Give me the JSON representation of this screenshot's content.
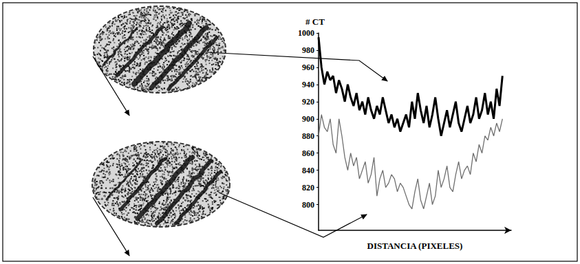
{
  "chart_data": {
    "type": "line",
    "y_label": "# CT",
    "x_label": "DISTANCIA (PIXELES)",
    "x": [
      0,
      1,
      2,
      3,
      4,
      5,
      6,
      7,
      8,
      9,
      10,
      11,
      12,
      13,
      14,
      15,
      16,
      17,
      18,
      19,
      20,
      21,
      22,
      23,
      24,
      25,
      26,
      27,
      28,
      29,
      30,
      31,
      32,
      33,
      34,
      35,
      36,
      37,
      38,
      39,
      40,
      41,
      42,
      43,
      44,
      45,
      46,
      47,
      48,
      49,
      50,
      51,
      52,
      53,
      54,
      55,
      56,
      57,
      58,
      59,
      60,
      61,
      62,
      63
    ],
    "series": [
      {
        "color": "#000000",
        "line_style": "solid",
        "values": [
          995,
          960,
          940,
          955,
          945,
          950,
          930,
          945,
          935,
          920,
          940,
          925,
          915,
          930,
          910,
          920,
          905,
          925,
          910,
          900,
          915,
          905,
          925,
          910,
          895,
          905,
          890,
          900,
          885,
          895,
          905,
          890,
          920,
          900,
          930,
          910,
          895,
          915,
          890,
          905,
          925,
          900,
          880,
          895,
          910,
          890,
          905,
          920,
          895,
          885,
          900,
          915,
          895,
          905,
          925,
          900,
          910,
          930,
          905,
          920,
          900,
          935,
          915,
          950
        ]
      },
      {
        "color": "#6e6e6e",
        "line_style": "solid",
        "values": [
          880,
          905,
          890,
          885,
          900,
          870,
          860,
          900,
          880,
          855,
          840,
          860,
          845,
          855,
          830,
          840,
          850,
          825,
          835,
          855,
          810,
          830,
          840,
          820,
          825,
          835,
          830,
          815,
          825,
          820,
          810,
          800,
          795,
          815,
          830,
          805,
          795,
          810,
          825,
          800,
          810,
          840,
          820,
          830,
          845,
          820,
          815,
          835,
          850,
          830,
          840,
          845,
          835,
          860,
          850,
          870,
          860,
          880,
          875,
          890,
          880,
          895,
          885,
          900
        ]
      }
    ],
    "xlim": [
      0,
      66
    ],
    "ylim": [
      770,
      1000
    ],
    "yticks": [
      800,
      820,
      840,
      860,
      880,
      900,
      920,
      940,
      960,
      980,
      1000
    ],
    "grid": false,
    "tick_labels": "y"
  }
}
